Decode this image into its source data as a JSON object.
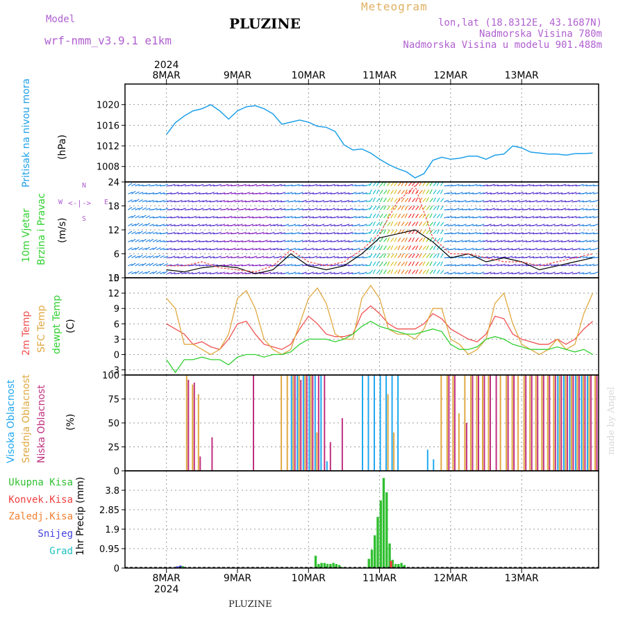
{
  "header": {
    "model_label": "Model",
    "model_name": "wrf-nmm_v3.9.1 e1km",
    "title": "PLUZINE",
    "meteogram": "Meteogram",
    "coords": "lon,lat (18.8312E, 43.1687N)",
    "elevation": "Nadmorska Visina 780m",
    "model_elevation": "Nadmorska Visina u modelu 901.488m"
  },
  "footer": {
    "title": "PLUZINE",
    "watermark": "made by Angel"
  },
  "time_axis": {
    "year": "2024",
    "labels": [
      "8MAR",
      "9MAR",
      "10MAR",
      "11MAR",
      "12MAR",
      "13MAR"
    ]
  },
  "panels": {
    "pressure": {
      "label_main": "Pritisak na nivou mora",
      "unit": "(hPa)"
    },
    "wind": {
      "label_1": "10m Vjetar",
      "label_2": "Brzina i Pravac",
      "unit": "(m/s)",
      "compass": {
        "n": "N",
        "s": "S",
        "e": "E",
        "w": "W"
      }
    },
    "temp": {
      "label_1": "2m Temp",
      "label_2": "SFC Temp",
      "label_3": "dewpt Temp",
      "unit": "(C)"
    },
    "cloud": {
      "label_1": "Visoka Oblacnost",
      "label_2": "Srednja Oblacnost",
      "label_3": "Niska Oblacnost",
      "unit": "(%)"
    },
    "precip": {
      "label": "1hr Precip (mm)",
      "legend": [
        "Ukupna Kisa",
        "Konvek.Kisa",
        "Zaledj.Kisa",
        "Snijeg",
        "Grad"
      ]
    }
  },
  "colors": {
    "pressure": "#1ea0e8",
    "temp2m": "#f05050",
    "sfc": "#e0a840",
    "dewpt": "#30d030",
    "cloud_high": "#20a8f0",
    "cloud_mid": "#e0a840",
    "cloud_low": "#c03080",
    "precip_total": "#30c030",
    "precip_conv": "#f04040",
    "precip_frz": "#f08030",
    "snow": "#4040e0",
    "hail": "#20c0c0",
    "wind_black": "#000000",
    "wind_red": "#f04040"
  },
  "chart_data": [
    {
      "type": "line",
      "name": "pressure",
      "ylabel": "Pritisak na nivou mora (hPa)",
      "ylim": [
        1005,
        1024
      ],
      "yticks": [
        1008,
        1012,
        1016,
        1020
      ],
      "x": [
        0,
        3,
        6,
        9,
        12,
        15,
        18,
        21,
        24,
        27,
        30,
        33,
        36,
        39,
        42,
        45,
        48,
        51,
        54,
        57,
        60,
        63,
        66,
        69,
        72,
        75,
        78,
        81,
        84,
        87,
        90,
        93,
        96,
        99,
        102,
        105,
        108,
        111,
        114,
        117,
        120,
        123,
        126,
        129,
        132,
        135,
        138,
        141,
        144
      ],
      "values": [
        1014.2,
        1016.5,
        1017.8,
        1018.8,
        1019.2,
        1020.0,
        1018.8,
        1017.2,
        1018.8,
        1019.6,
        1019.8,
        1019.2,
        1018.2,
        1016.2,
        1016.6,
        1017.0,
        1016.6,
        1015.8,
        1015.6,
        1014.8,
        1012.2,
        1011.2,
        1011.4,
        1010.6,
        1009.4,
        1008.4,
        1007.6,
        1007.0,
        1005.8,
        1006.6,
        1009.2,
        1009.8,
        1009.4,
        1009.6,
        1010.0,
        1010.0,
        1009.4,
        1010.2,
        1010.4,
        1012.0,
        1011.6,
        1010.8,
        1010.6,
        1010.4,
        1010.4,
        1010.2,
        1010.5,
        1010.5,
        1010.6
      ]
    },
    {
      "type": "line",
      "name": "wind",
      "ylabel": "10m Vjetar Brzina i Pravac (m/s)",
      "ylim": [
        0,
        24
      ],
      "yticks": [
        0,
        6,
        12,
        18,
        24
      ],
      "x": [
        0,
        6,
        12,
        18,
        24,
        30,
        36,
        42,
        48,
        54,
        60,
        66,
        72,
        78,
        84,
        90,
        96,
        102,
        108,
        114,
        120,
        126,
        132,
        138,
        144
      ],
      "series": [
        {
          "values": [
            2,
            1.5,
            2.5,
            3,
            2.5,
            1,
            2,
            6,
            3,
            2,
            3,
            6,
            10,
            11,
            12,
            9,
            5,
            6,
            4,
            5,
            4,
            2,
            3,
            4,
            5
          ]
        },
        {
          "values": [
            3,
            3,
            4,
            2.5,
            2,
            1.5,
            3,
            7,
            4,
            3,
            4,
            7,
            11,
            19,
            23,
            10,
            6,
            6,
            5,
            4,
            4,
            3,
            4,
            5,
            6
          ]
        }
      ]
    },
    {
      "type": "line",
      "name": "temperature",
      "ylabel": "Temp (C)",
      "ylim": [
        -4,
        15
      ],
      "yticks": [
        -3,
        0,
        3,
        6,
        9,
        12,
        15
      ],
      "x": [
        0,
        3,
        6,
        9,
        12,
        15,
        18,
        21,
        24,
        27,
        30,
        33,
        36,
        39,
        42,
        45,
        48,
        51,
        54,
        57,
        60,
        63,
        66,
        69,
        72,
        75,
        78,
        81,
        84,
        87,
        90,
        93,
        96,
        99,
        102,
        105,
        108,
        111,
        114,
        117,
        120,
        123,
        126,
        129,
        132,
        135,
        138,
        141,
        144
      ],
      "series": [
        {
          "name": "2m Temp",
          "values": [
            6,
            5,
            4,
            2,
            2.5,
            1.5,
            1,
            3,
            6,
            6.5,
            4,
            2,
            1.5,
            1,
            2,
            5,
            7.5,
            6,
            4,
            3.5,
            3.5,
            4,
            8,
            9.5,
            8,
            6,
            5,
            5,
            5,
            6,
            8,
            7,
            5,
            4,
            3,
            2.5,
            4,
            7.5,
            7,
            4,
            3,
            2.5,
            2,
            2,
            3,
            2,
            3,
            5,
            6.5
          ]
        },
        {
          "name": "SFC Temp",
          "values": [
            11,
            9,
            2,
            2,
            1,
            0,
            1,
            4,
            11,
            12.5,
            9,
            3,
            1,
            0,
            1,
            6,
            11,
            13,
            10,
            4,
            3,
            3,
            11,
            13.5,
            11,
            5,
            4,
            4,
            3,
            5,
            9,
            9,
            3,
            2,
            0,
            1,
            3,
            10,
            12,
            6,
            2,
            1,
            0,
            1,
            3,
            1,
            2,
            8,
            12
          ]
        },
        {
          "name": "dewpt Temp",
          "values": [
            -1,
            -3.5,
            -1,
            -1,
            -0.5,
            -1,
            -1,
            -2,
            -0.5,
            0,
            0,
            -0.5,
            0,
            0,
            0.5,
            2,
            3,
            3,
            3,
            2.5,
            3,
            4,
            5.5,
            6.5,
            5.5,
            5,
            4.5,
            4,
            4,
            4.5,
            5,
            4.5,
            2,
            1,
            1,
            1.5,
            3,
            3.5,
            3,
            2,
            1.5,
            1,
            1,
            1,
            1.5,
            1,
            0.5,
            1,
            0
          ]
        }
      ]
    },
    {
      "type": "bar",
      "name": "cloud cover",
      "ylabel": "Oblacnost (%)",
      "ylim": [
        0,
        100
      ],
      "yticks": [
        0,
        25,
        50,
        75,
        100
      ],
      "x": [
        0,
        2,
        4,
        6,
        8,
        10,
        12,
        14,
        16,
        18,
        20,
        22,
        24,
        26,
        28,
        30,
        32,
        34,
        36,
        38,
        40,
        42,
        44,
        46,
        48,
        50,
        52,
        54,
        56,
        58,
        60,
        62,
        64,
        66,
        68,
        70,
        72,
        74,
        76,
        78,
        80,
        82,
        84,
        86,
        88,
        90,
        92,
        94,
        96,
        98,
        100,
        102,
        104,
        106,
        108,
        110,
        112,
        114,
        116,
        118,
        120,
        122,
        124,
        126,
        128,
        130,
        132,
        134,
        136,
        138,
        140,
        142,
        144
      ],
      "series": [
        {
          "name": "Visoka Oblacnost",
          "values": [
            0,
            0,
            0,
            0,
            0,
            0,
            0,
            0,
            0,
            0,
            0,
            0,
            0,
            0,
            0,
            0,
            0,
            0,
            0,
            0,
            0,
            100,
            100,
            100,
            100,
            100,
            100,
            10,
            0,
            0,
            0,
            0,
            0,
            100,
            100,
            100,
            100,
            100,
            100,
            100,
            0,
            0,
            0,
            0,
            22,
            12,
            0,
            0,
            0,
            0,
            0,
            0,
            0,
            0,
            0,
            0,
            0,
            0,
            0,
            0,
            0,
            0,
            0,
            0,
            0,
            0,
            100,
            100,
            100,
            100,
            100,
            100,
            0
          ]
        },
        {
          "name": "Srednja Oblacnost",
          "values": [
            0,
            0,
            0,
            100,
            90,
            80,
            0,
            0,
            0,
            0,
            0,
            0,
            0,
            0,
            0,
            0,
            0,
            0,
            0,
            100,
            100,
            100,
            100,
            100,
            100,
            40,
            0,
            0,
            0,
            0,
            0,
            0,
            0,
            0,
            0,
            0,
            0,
            80,
            40,
            0,
            0,
            0,
            0,
            0,
            0,
            0,
            100,
            100,
            100,
            60,
            100,
            100,
            100,
            100,
            100,
            0,
            100,
            100,
            100,
            100,
            100,
            100,
            100,
            100,
            100,
            100,
            100,
            100,
            100,
            100,
            100,
            100,
            100
          ]
        },
        {
          "name": "Niska Oblacnost",
          "values": [
            0,
            0,
            0,
            95,
            92,
            15,
            0,
            35,
            0,
            0,
            0,
            0,
            0,
            0,
            100,
            0,
            0,
            0,
            0,
            0,
            0,
            100,
            95,
            100,
            100,
            100,
            100,
            30,
            0,
            55,
            0,
            0,
            0,
            0,
            0,
            0,
            0,
            0,
            0,
            0,
            0,
            0,
            0,
            0,
            0,
            0,
            0,
            100,
            100,
            0,
            50,
            100,
            100,
            100,
            100,
            100,
            0,
            100,
            100,
            0,
            100,
            100,
            100,
            100,
            100,
            100,
            100,
            100,
            100,
            100,
            100,
            100,
            100
          ]
        }
      ]
    },
    {
      "type": "bar",
      "name": "precipitation",
      "ylabel": "1hr Precip (mm)",
      "ylim": [
        0,
        4.75
      ],
      "yticks": [
        0,
        0.95,
        1.9,
        2.85,
        3.8
      ],
      "x": [
        4,
        5,
        6,
        29,
        50,
        51,
        52,
        53,
        54,
        55,
        56,
        57,
        58,
        59,
        60,
        61,
        62,
        63,
        67,
        68,
        69,
        70,
        71,
        72,
        73,
        74,
        75,
        76,
        77,
        78,
        79,
        80,
        81,
        82,
        83,
        84,
        85,
        86,
        87
      ],
      "series": [
        {
          "name": "Ukupna Kisa",
          "values": [
            0.05,
            0.1,
            0.05,
            0.03,
            0.6,
            0.2,
            0.25,
            0.25,
            0.2,
            0.2,
            0.25,
            0.2,
            0.15,
            0.05,
            0,
            0,
            0,
            0,
            0.05,
            0.45,
            0.9,
            1.6,
            2.5,
            3.3,
            4.4,
            3.7,
            1.2,
            0.4,
            0.2,
            0.2,
            0.25,
            0.15,
            0,
            0,
            0,
            0,
            0,
            0,
            0
          ]
        },
        {
          "name": "Konvek.Kisa",
          "values": [
            0,
            0,
            0,
            0,
            0,
            0,
            0,
            0,
            0,
            0,
            0,
            0,
            0,
            0,
            0,
            0,
            0,
            0,
            0,
            0,
            0,
            0,
            0,
            0,
            0,
            0,
            0.35,
            0,
            0,
            0,
            0,
            0,
            0,
            0,
            0,
            0,
            0,
            0,
            0
          ]
        },
        {
          "name": "Snijeg",
          "values": [
            0.08,
            0.12,
            0.03,
            0,
            0,
            0,
            0,
            0,
            0,
            0,
            0,
            0,
            0,
            0,
            0,
            0,
            0,
            0,
            0,
            0,
            0,
            0,
            0,
            0,
            0,
            0,
            0,
            0,
            0,
            0,
            0,
            0,
            0,
            0,
            0,
            0,
            0,
            0,
            0
          ]
        }
      ]
    }
  ]
}
